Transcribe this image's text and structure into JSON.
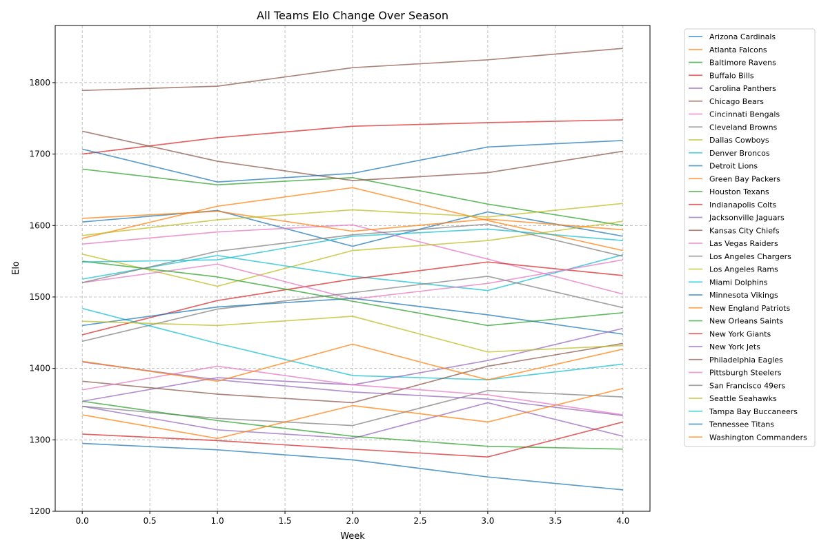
{
  "chart_data": {
    "type": "line",
    "title": "All Teams Elo Change Over Season",
    "xlabel": "Week",
    "ylabel": "Elo",
    "x": [
      0,
      1,
      2,
      3,
      4
    ],
    "xlim": [
      -0.2,
      4.2
    ],
    "ylim": [
      1200,
      1880
    ],
    "x_ticks": [
      "0.0",
      "0.5",
      "1.0",
      "1.5",
      "2.0",
      "2.5",
      "3.0",
      "3.5",
      "4.0"
    ],
    "y_ticks": [
      "1200",
      "1300",
      "1400",
      "1500",
      "1600",
      "1700",
      "1800"
    ],
    "grid": true,
    "legend_position": "outside-right",
    "series": [
      {
        "name": "Arizona Cardinals",
        "color": "#1f77b4",
        "values": [
          1605,
          1621,
          1571,
          1619,
          1585
        ]
      },
      {
        "name": "Atlanta Falcons",
        "color": "#ff7f0e",
        "values": [
          1582,
          1627,
          1653,
          1607,
          1565
        ]
      },
      {
        "name": "Baltimore Ravens",
        "color": "#2ca02c",
        "values": [
          1679,
          1657,
          1667,
          1630,
          1600
        ]
      },
      {
        "name": "Buffalo Bills",
        "color": "#d62728",
        "values": [
          1700,
          1723,
          1739,
          1744,
          1748
        ]
      },
      {
        "name": "Carolina Panthers",
        "color": "#9467bd",
        "values": [
          1347,
          1314,
          1302,
          1352,
          1305
        ]
      },
      {
        "name": "Chicago Bears",
        "color": "#8c564b",
        "values": [
          1732,
          1690,
          1663,
          1674,
          1704
        ]
      },
      {
        "name": "Cincinnati Bengals",
        "color": "#e377c2",
        "values": [
          1574,
          1591,
          1601,
          1553,
          1504
        ]
      },
      {
        "name": "Cleveland Browns",
        "color": "#7f7f7f",
        "values": [
          1347,
          1330,
          1320,
          1369,
          1360
        ]
      },
      {
        "name": "Dallas Cowboys",
        "color": "#bcbd22",
        "values": [
          1560,
          1515,
          1565,
          1579,
          1606
        ]
      },
      {
        "name": "Denver Broncos",
        "color": "#17becf",
        "values": [
          1525,
          1558,
          1529,
          1509,
          1559
        ]
      },
      {
        "name": "Detroit Lions",
        "color": "#1f77b4",
        "values": [
          1707,
          1661,
          1673,
          1710,
          1719
        ]
      },
      {
        "name": "Green Bay Packers",
        "color": "#ff7f0e",
        "values": [
          1610,
          1620,
          1592,
          1609,
          1594
        ]
      },
      {
        "name": "Houston Texans",
        "color": "#2ca02c",
        "values": [
          1354,
          1327,
          1305,
          1291,
          1287
        ]
      },
      {
        "name": "Indianapolis Colts",
        "color": "#d62728",
        "values": [
          1447,
          1495,
          1525,
          1549,
          1530
        ]
      },
      {
        "name": "Jacksonville Jaguars",
        "color": "#9467bd",
        "values": [
          1409,
          1384,
          1367,
          1357,
          1334
        ]
      },
      {
        "name": "Kansas City Chiefs",
        "color": "#8c564b",
        "values": [
          1789,
          1795,
          1821,
          1832,
          1848
        ]
      },
      {
        "name": "Las Vegas Raiders",
        "color": "#e377c2",
        "values": [
          1520,
          1546,
          1497,
          1519,
          1552
        ]
      },
      {
        "name": "Los Angeles Chargers",
        "color": "#7f7f7f",
        "values": [
          1438,
          1483,
          1506,
          1529,
          1485
        ]
      },
      {
        "name": "Los Angeles Rams",
        "color": "#bcbd22",
        "values": [
          1586,
          1608,
          1622,
          1612,
          1631
        ]
      },
      {
        "name": "Miami Dolphins",
        "color": "#17becf",
        "values": [
          1484,
          1435,
          1390,
          1384,
          1406
        ]
      },
      {
        "name": "Minnesota Vikings",
        "color": "#1f77b4",
        "values": [
          1460,
          1486,
          1498,
          1475,
          1448
        ]
      },
      {
        "name": "New England Patriots",
        "color": "#ff7f0e",
        "values": [
          1335,
          1302,
          1348,
          1325,
          1372
        ]
      },
      {
        "name": "New Orleans Saints",
        "color": "#2ca02c",
        "values": [
          1550,
          1528,
          1494,
          1460,
          1478
        ]
      },
      {
        "name": "New York Giants",
        "color": "#d62728",
        "values": [
          1308,
          1299,
          1287,
          1276,
          1325
        ]
      },
      {
        "name": "New York Jets",
        "color": "#9467bd",
        "values": [
          1354,
          1387,
          1377,
          1411,
          1456
        ]
      },
      {
        "name": "Philadelphia Eagles",
        "color": "#8c564b",
        "values": [
          1382,
          1364,
          1352,
          1403,
          1435
        ]
      },
      {
        "name": "Pittsburgh Steelers",
        "color": "#e377c2",
        "values": [
          1370,
          1403,
          1377,
          1363,
          1335
        ]
      },
      {
        "name": "San Francisco 49ers",
        "color": "#7f7f7f",
        "values": [
          1520,
          1564,
          1587,
          1602,
          1557
        ]
      },
      {
        "name": "Seattle Seahawks",
        "color": "#bcbd22",
        "values": [
          1466,
          1460,
          1473,
          1423,
          1432
        ]
      },
      {
        "name": "Tampa Bay Buccaneers",
        "color": "#17becf",
        "values": [
          1549,
          1552,
          1585,
          1595,
          1579
        ]
      },
      {
        "name": "Tennessee Titans",
        "color": "#1f77b4",
        "values": [
          1295,
          1286,
          1272,
          1248,
          1230
        ]
      },
      {
        "name": "Washington Commanders",
        "color": "#ff7f0e",
        "values": [
          1410,
          1382,
          1434,
          1384,
          1427
        ]
      }
    ]
  }
}
